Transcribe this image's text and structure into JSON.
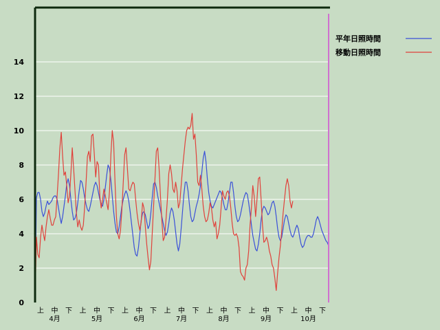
{
  "chart_data": {
    "type": "line",
    "title": "",
    "xlabel": "",
    "ylabel": "",
    "ylim": [
      0,
      16
    ],
    "y_ticks": [
      0,
      2,
      4,
      6,
      8,
      10,
      12,
      14
    ],
    "grid": true,
    "legend_position": "top-right",
    "sub_period_labels": [
      "上",
      "中",
      "下"
    ],
    "month_labels": [
      "4月",
      "5月",
      "6月",
      "7月",
      "8月",
      "9月",
      "10月"
    ],
    "x_count": 214,
    "series": [
      {
        "name": "平年日照時間",
        "color": "#3a50d8",
        "values": [
          0.0,
          6.1,
          6.4,
          6.4,
          6.0,
          5.3,
          5.0,
          5.2,
          5.6,
          5.9,
          5.7,
          5.8,
          5.9,
          6.1,
          6.2,
          6.2,
          6.0,
          5.5,
          5.0,
          4.6,
          5.0,
          5.6,
          6.2,
          6.9,
          7.2,
          6.8,
          6.0,
          5.3,
          4.8,
          4.9,
          5.2,
          5.8,
          6.5,
          7.1,
          7.0,
          6.6,
          6.1,
          5.7,
          5.4,
          5.3,
          5.6,
          6.0,
          6.4,
          6.8,
          7.0,
          6.8,
          6.4,
          6.0,
          5.7,
          5.6,
          6.0,
          6.7,
          7.4,
          8.0,
          7.8,
          7.1,
          6.2,
          5.3,
          4.6,
          4.1,
          4.0,
          4.4,
          5.0,
          5.6,
          6.0,
          6.3,
          6.5,
          6.3,
          5.9,
          5.3,
          4.6,
          3.9,
          3.2,
          2.8,
          2.7,
          3.2,
          4.0,
          4.8,
          5.2,
          5.3,
          5.1,
          4.7,
          4.3,
          4.5,
          5.2,
          6.1,
          6.9,
          7.0,
          6.7,
          6.2,
          5.8,
          5.4,
          5.0,
          4.6,
          4.2,
          3.9,
          4.1,
          4.6,
          5.2,
          5.5,
          5.3,
          4.8,
          4.1,
          3.4,
          3.0,
          3.4,
          4.3,
          5.3,
          6.3,
          7.0,
          7.0,
          6.5,
          5.7,
          5.0,
          4.7,
          4.8,
          5.2,
          5.6,
          5.9,
          6.3,
          6.8,
          7.6,
          8.4,
          8.8,
          8.2,
          7.2,
          6.4,
          5.9,
          5.6,
          5.5,
          5.7,
          5.9,
          6.1,
          6.3,
          6.5,
          6.4,
          6.1,
          5.7,
          5.4,
          5.4,
          5.8,
          6.4,
          7.0,
          7.0,
          6.4,
          5.6,
          5.0,
          4.7,
          4.8,
          5.1,
          5.5,
          5.9,
          6.2,
          6.4,
          6.3,
          5.8,
          5.2,
          4.5,
          3.9,
          3.5,
          3.1,
          3.0,
          3.4,
          4.0,
          4.8,
          5.4,
          5.6,
          5.5,
          5.3,
          5.1,
          5.2,
          5.5,
          5.8,
          5.9,
          5.6,
          5.0,
          4.3,
          3.8,
          3.6,
          3.8,
          4.3,
          4.8,
          5.1,
          5.0,
          4.6,
          4.2,
          3.9,
          3.8,
          4.0,
          4.3,
          4.5,
          4.3,
          3.8,
          3.4,
          3.2,
          3.3,
          3.6,
          3.8,
          3.9,
          3.9,
          3.8,
          3.8,
          4.0,
          4.4,
          4.8,
          5.0,
          4.8,
          4.5,
          4.2,
          4.0,
          3.8,
          3.6,
          3.5,
          3.3
        ]
      },
      {
        "name": "移動日照時間",
        "color": "#e0403a",
        "values": [
          0.0,
          3.8,
          2.8,
          2.6,
          3.8,
          4.5,
          4.0,
          3.6,
          4.4,
          5.0,
          5.4,
          4.9,
          4.5,
          4.5,
          4.8,
          5.0,
          6.2,
          7.5,
          9.0,
          9.9,
          8.5,
          7.4,
          7.6,
          6.8,
          5.8,
          6.2,
          7.5,
          9.0,
          7.8,
          6.5,
          5.2,
          4.4,
          4.8,
          4.4,
          4.2,
          4.5,
          5.6,
          7.0,
          8.5,
          8.8,
          8.2,
          9.7,
          9.8,
          8.6,
          7.3,
          8.2,
          8.0,
          6.2,
          5.5,
          6.0,
          6.6,
          6.2,
          5.8,
          5.4,
          6.5,
          8.6,
          10.0,
          9.3,
          7.0,
          5.0,
          4.0,
          3.7,
          4.2,
          5.4,
          7.0,
          8.6,
          9.0,
          7.8,
          6.6,
          6.5,
          6.8,
          7.0,
          6.9,
          6.0,
          5.2,
          4.6,
          4.2,
          4.7,
          5.8,
          5.5,
          4.4,
          3.4,
          2.6,
          1.9,
          2.4,
          4.0,
          5.6,
          7.2,
          8.8,
          9.0,
          7.8,
          6.2,
          4.8,
          3.6,
          3.8,
          4.8,
          6.0,
          7.5,
          8.0,
          7.5,
          6.6,
          6.4,
          7.0,
          6.5,
          5.5,
          5.8,
          6.8,
          7.8,
          8.6,
          9.4,
          10.0,
          10.2,
          10.1,
          10.3,
          11.0,
          9.5,
          9.8,
          8.6,
          7.0,
          6.8,
          7.4,
          6.6,
          5.6,
          5.0,
          4.7,
          4.8,
          5.2,
          5.8,
          5.5,
          4.8,
          4.4,
          4.7,
          3.7,
          4.0,
          4.5,
          5.5,
          6.5,
          6.2,
          6.0,
          6.4,
          6.5,
          6.2,
          5.5,
          4.6,
          4.0,
          3.9,
          4.0,
          3.8,
          3.2,
          1.8,
          1.6,
          1.5,
          1.3,
          2.0,
          2.2,
          3.0,
          4.5,
          5.5,
          6.8,
          6.2,
          5.0,
          6.0,
          7.2,
          7.3,
          6.0,
          4.5,
          3.5,
          3.6,
          3.8,
          3.5,
          3.0,
          2.7,
          2.2,
          2.0,
          1.4,
          0.7,
          1.7,
          2.6,
          3.3,
          4.2,
          5.2,
          6.0,
          6.8,
          7.2,
          6.8,
          5.9,
          5.5,
          5.9
        ]
      }
    ]
  }
}
